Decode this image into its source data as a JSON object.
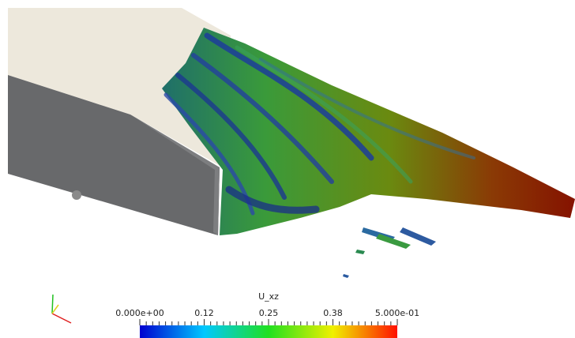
{
  "color_legend": {
    "title": "U_xz",
    "labels": [
      "0.000e+00",
      "0.12",
      "0.25",
      "0.38",
      "5.000e-01"
    ]
  }
}
